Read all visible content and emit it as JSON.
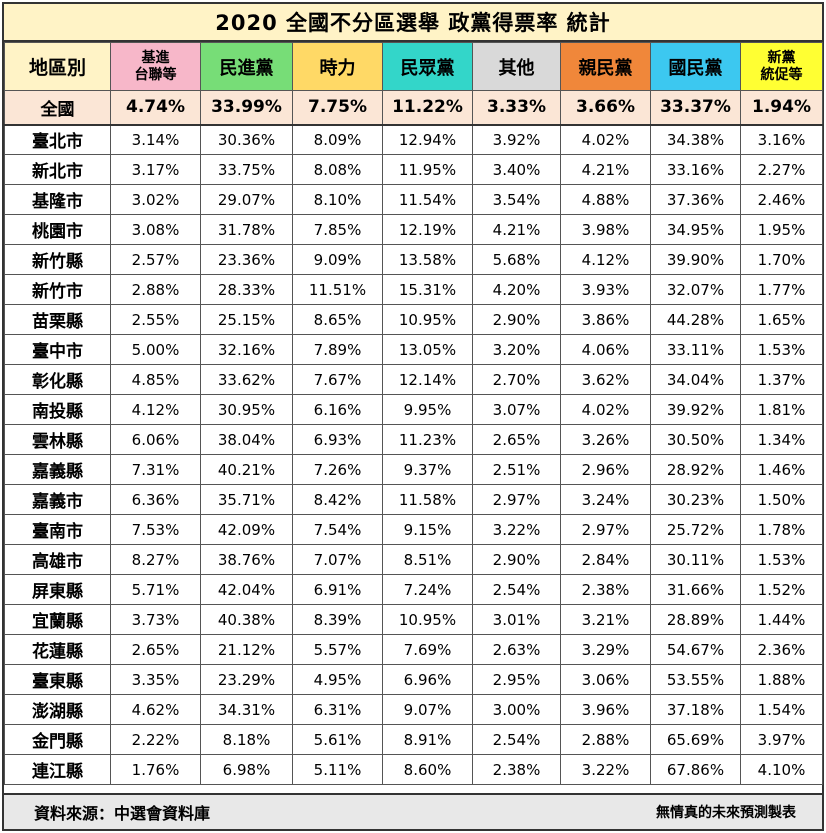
{
  "title": "2020 全國不分區選舉 政黨得票率 統計",
  "footer": {
    "source": "資料來源：中選會資料庫",
    "credit": "無情真的未來預測製表"
  },
  "chart_data": {
    "type": "table",
    "corner_label": "地區別",
    "columns": [
      {
        "name": "基進\n台聯等",
        "color": "#f7b7c9"
      },
      {
        "name": "民進黨",
        "color": "#77dd77"
      },
      {
        "name": "時力",
        "color": "#ffd966"
      },
      {
        "name": "民眾黨",
        "color": "#33d6c9"
      },
      {
        "name": "其他",
        "color": "#d9d9d9"
      },
      {
        "name": "親民黨",
        "color": "#f0873a"
      },
      {
        "name": "國民黨",
        "color": "#3cc8f0"
      },
      {
        "name": "新黨\n統促等",
        "color": "#ffff33"
      }
    ],
    "national": {
      "region": "全國",
      "values": [
        "4.74%",
        "33.99%",
        "7.75%",
        "11.22%",
        "3.33%",
        "3.66%",
        "33.37%",
        "1.94%"
      ]
    },
    "rows": [
      {
        "region": "臺北市",
        "values": [
          "3.14%",
          "30.36%",
          "8.09%",
          "12.94%",
          "3.92%",
          "4.02%",
          "34.38%",
          "3.16%"
        ]
      },
      {
        "region": "新北市",
        "values": [
          "3.17%",
          "33.75%",
          "8.08%",
          "11.95%",
          "3.40%",
          "4.21%",
          "33.16%",
          "2.27%"
        ]
      },
      {
        "region": "基隆市",
        "values": [
          "3.02%",
          "29.07%",
          "8.10%",
          "11.54%",
          "3.54%",
          "4.88%",
          "37.36%",
          "2.46%"
        ]
      },
      {
        "region": "桃園市",
        "values": [
          "3.08%",
          "31.78%",
          "7.85%",
          "12.19%",
          "4.21%",
          "3.98%",
          "34.95%",
          "1.95%"
        ]
      },
      {
        "region": "新竹縣",
        "values": [
          "2.57%",
          "23.36%",
          "9.09%",
          "13.58%",
          "5.68%",
          "4.12%",
          "39.90%",
          "1.70%"
        ]
      },
      {
        "region": "新竹市",
        "values": [
          "2.88%",
          "28.33%",
          "11.51%",
          "15.31%",
          "4.20%",
          "3.93%",
          "32.07%",
          "1.77%"
        ]
      },
      {
        "region": "苗栗縣",
        "values": [
          "2.55%",
          "25.15%",
          "8.65%",
          "10.95%",
          "2.90%",
          "3.86%",
          "44.28%",
          "1.65%"
        ]
      },
      {
        "region": "臺中市",
        "values": [
          "5.00%",
          "32.16%",
          "7.89%",
          "13.05%",
          "3.20%",
          "4.06%",
          "33.11%",
          "1.53%"
        ]
      },
      {
        "region": "彰化縣",
        "values": [
          "4.85%",
          "33.62%",
          "7.67%",
          "12.14%",
          "2.70%",
          "3.62%",
          "34.04%",
          "1.37%"
        ]
      },
      {
        "region": "南投縣",
        "values": [
          "4.12%",
          "30.95%",
          "6.16%",
          "9.95%",
          "3.07%",
          "4.02%",
          "39.92%",
          "1.81%"
        ]
      },
      {
        "region": "雲林縣",
        "values": [
          "6.06%",
          "38.04%",
          "6.93%",
          "11.23%",
          "2.65%",
          "3.26%",
          "30.50%",
          "1.34%"
        ]
      },
      {
        "region": "嘉義縣",
        "values": [
          "7.31%",
          "40.21%",
          "7.26%",
          "9.37%",
          "2.51%",
          "2.96%",
          "28.92%",
          "1.46%"
        ]
      },
      {
        "region": "嘉義市",
        "values": [
          "6.36%",
          "35.71%",
          "8.42%",
          "11.58%",
          "2.97%",
          "3.24%",
          "30.23%",
          "1.50%"
        ]
      },
      {
        "region": "臺南市",
        "values": [
          "7.53%",
          "42.09%",
          "7.54%",
          "9.15%",
          "3.22%",
          "2.97%",
          "25.72%",
          "1.78%"
        ]
      },
      {
        "region": "高雄市",
        "values": [
          "8.27%",
          "38.76%",
          "7.07%",
          "8.51%",
          "2.90%",
          "2.84%",
          "30.11%",
          "1.53%"
        ]
      },
      {
        "region": "屏東縣",
        "values": [
          "5.71%",
          "42.04%",
          "6.91%",
          "7.24%",
          "2.54%",
          "2.38%",
          "31.66%",
          "1.52%"
        ]
      },
      {
        "region": "宜蘭縣",
        "values": [
          "3.73%",
          "40.38%",
          "8.39%",
          "10.95%",
          "3.01%",
          "3.21%",
          "28.89%",
          "1.44%"
        ]
      },
      {
        "region": "花蓮縣",
        "values": [
          "2.65%",
          "21.12%",
          "5.57%",
          "7.69%",
          "2.63%",
          "3.29%",
          "54.67%",
          "2.36%"
        ]
      },
      {
        "region": "臺東縣",
        "values": [
          "3.35%",
          "23.29%",
          "4.95%",
          "6.96%",
          "2.95%",
          "3.06%",
          "53.55%",
          "1.88%"
        ]
      },
      {
        "region": "澎湖縣",
        "values": [
          "4.62%",
          "34.31%",
          "6.31%",
          "9.07%",
          "3.00%",
          "3.96%",
          "37.18%",
          "1.54%"
        ]
      },
      {
        "region": "金門縣",
        "values": [
          "2.22%",
          "8.18%",
          "5.61%",
          "8.91%",
          "2.54%",
          "2.88%",
          "65.69%",
          "3.97%"
        ]
      },
      {
        "region": "連江縣",
        "values": [
          "1.76%",
          "6.98%",
          "5.11%",
          "8.60%",
          "2.38%",
          "3.22%",
          "67.86%",
          "4.10%"
        ]
      }
    ]
  }
}
